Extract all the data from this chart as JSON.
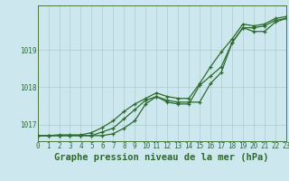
{
  "title": "Graphe pression niveau de la mer (hPa)",
  "bg_color": "#cce8ee",
  "grid_color": "#aacccc",
  "line_color": "#2d6b2d",
  "x_hours": [
    0,
    1,
    2,
    3,
    4,
    5,
    6,
    7,
    8,
    9,
    10,
    11,
    12,
    13,
    14,
    15,
    16,
    17,
    18,
    19,
    20,
    21,
    22,
    23
  ],
  "line1": [
    1016.7,
    1016.7,
    1016.7,
    1016.7,
    1016.7,
    1016.7,
    1016.7,
    1016.75,
    1016.9,
    1017.1,
    1017.55,
    1017.75,
    1017.65,
    1017.6,
    1017.6,
    1017.6,
    1018.1,
    1018.4,
    1019.2,
    1019.6,
    1019.5,
    1019.5,
    1019.75,
    1019.85
  ],
  "line2": [
    1016.7,
    1016.7,
    1016.7,
    1016.7,
    1016.7,
    1016.7,
    1016.8,
    1016.9,
    1017.15,
    1017.4,
    1017.65,
    1017.75,
    1017.6,
    1017.55,
    1017.55,
    1018.05,
    1018.3,
    1018.55,
    1019.2,
    1019.6,
    1019.6,
    1019.65,
    1019.8,
    1019.85
  ],
  "line3": [
    1016.7,
    1016.7,
    1016.72,
    1016.72,
    1016.72,
    1016.78,
    1016.92,
    1017.1,
    1017.35,
    1017.55,
    1017.7,
    1017.85,
    1017.75,
    1017.7,
    1017.7,
    1018.1,
    1018.55,
    1018.95,
    1019.3,
    1019.7,
    1019.65,
    1019.7,
    1019.85,
    1019.9
  ],
  "ylim": [
    1016.55,
    1020.2
  ],
  "yticks": [
    1017,
    1018,
    1019
  ],
  "xlim": [
    0,
    23
  ],
  "title_fontsize": 7.5,
  "tick_fontsize": 5.5,
  "marker": "+"
}
